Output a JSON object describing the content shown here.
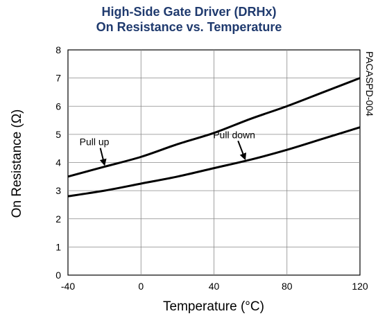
{
  "chart_data": {
    "type": "line",
    "title": [
      "High-Side Gate Driver (DRHx)",
      "On Resistance vs. Temperature"
    ],
    "xlabel": "Temperature (°C)",
    "ylabel": "On Resistance (Ω)",
    "xlim": [
      -40,
      120
    ],
    "ylim": [
      0,
      8
    ],
    "x_ticks": [
      "-40",
      "0",
      "40",
      "80",
      "120"
    ],
    "y_ticks": [
      "0",
      "1",
      "2",
      "3",
      "4",
      "5",
      "6",
      "7",
      "8"
    ],
    "grid": true,
    "title_color": "#1f3a6e",
    "series": [
      {
        "name": "Pull up",
        "x": [
          -40,
          -20,
          0,
          20,
          40,
          60,
          80,
          100,
          120
        ],
        "y": [
          3.5,
          3.85,
          4.2,
          4.65,
          5.05,
          5.55,
          6.0,
          6.5,
          7.0
        ]
      },
      {
        "name": "Pull down",
        "x": [
          -40,
          -20,
          0,
          20,
          40,
          60,
          80,
          100,
          120
        ],
        "y": [
          2.8,
          3.0,
          3.25,
          3.5,
          3.8,
          4.1,
          4.45,
          4.85,
          5.25
        ]
      }
    ],
    "annotations": [
      {
        "text": "Pull up",
        "series": 0,
        "arrow_to": [
          -20,
          3.85
        ]
      },
      {
        "text": "Pull down",
        "series": 1,
        "arrow_to": [
          57,
          4.1
        ]
      }
    ],
    "side_label": "PACASPD-004"
  }
}
